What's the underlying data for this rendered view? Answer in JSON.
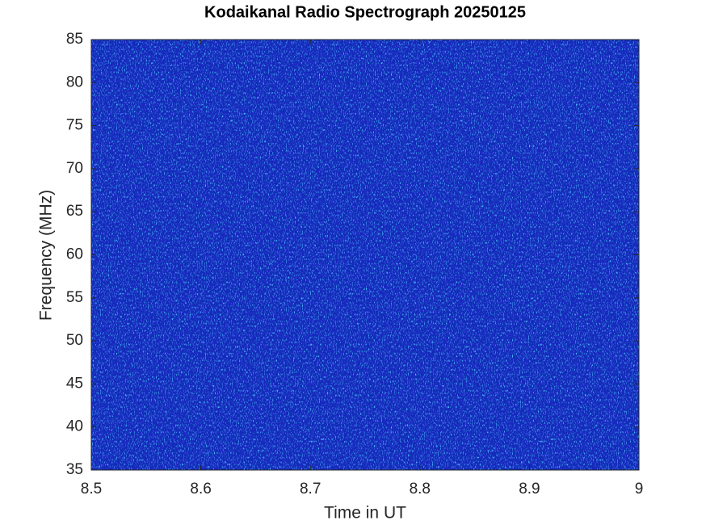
{
  "chart_data": {
    "type": "spectrogram",
    "title": "Kodaikanal Radio Spectrograph  20250125",
    "x_label": "Time in UT",
    "y_label": "Frequency (MHz)",
    "xlim": [
      8.5,
      9
    ],
    "xticks": [
      8.5,
      8.6,
      8.7,
      8.8,
      8.9,
      9
    ],
    "ylim": [
      35,
      85
    ],
    "yticks": [
      35,
      40,
      45,
      50,
      55,
      60,
      65,
      70,
      75,
      80,
      85
    ],
    "colormap": "jet"
  }
}
